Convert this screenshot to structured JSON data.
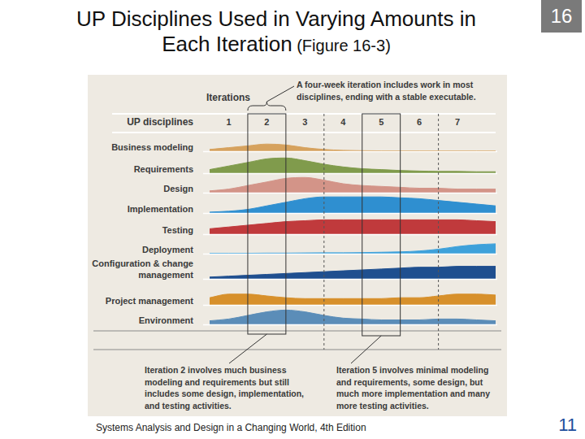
{
  "slide": {
    "title": "UP Disciplines Used in Varying Amounts in\nEach Iteration",
    "subtitle": "(Figure 16-3)",
    "chapter": "16",
    "footer": "Systems Analysis and Design in a Changing World, 4th Edition",
    "page": "11"
  },
  "figure": {
    "iterations_label": "Iterations",
    "disciplines_label": "UP disciplines",
    "iterations": [
      "1",
      "2",
      "3",
      "4",
      "5",
      "6",
      "7"
    ],
    "top_note": "A four-week iteration includes work in most\ndisciplines, ending with a stable executable.",
    "left_note": "Iteration 2 involves much business\nmodeling and requirements but still\nincludes some design, implementation,\nand testing activities.",
    "right_note": "Iteration 5 involves minimal modeling\nand requirements, some design, but\nmuch more implementation and many\nmore testing activities."
  },
  "chart_data": [
    {
      "type": "line",
      "title": "Business modeling",
      "color": "#d6a25e",
      "x": [
        0.5,
        1,
        1.5,
        2,
        2.5,
        3,
        3.5,
        4,
        4.5,
        5,
        5.5,
        6,
        6.5,
        7,
        7.5,
        8
      ],
      "values": [
        1,
        2,
        3,
        4,
        3.5,
        2,
        1,
        0.5,
        0.3,
        0.2,
        0.2,
        0.2,
        0.2,
        0.2,
        0.2,
        0.2
      ],
      "xlim": [
        0.5,
        8
      ],
      "ylim": [
        0,
        10
      ],
      "tick_labels": false,
      "grid": false
    },
    {
      "type": "line",
      "title": "Requirements",
      "color": "#809b4c",
      "x": [
        0.5,
        1,
        1.5,
        2,
        2.5,
        3,
        3.5,
        4,
        4.5,
        5,
        5.5,
        6,
        6.5,
        7,
        7.5,
        8
      ],
      "values": [
        2,
        4,
        6,
        8,
        8.5,
        7,
        5,
        3.5,
        2.5,
        2,
        1.5,
        1.2,
        1,
        1,
        0.8,
        0.8
      ],
      "xlim": [
        0.5,
        8
      ],
      "ylim": [
        0,
        10
      ],
      "tick_labels": false,
      "grid": false
    },
    {
      "type": "line",
      "title": "Design",
      "color": "#d39488",
      "x": [
        0.5,
        1,
        1.5,
        2,
        2.5,
        3,
        3.5,
        4,
        4.5,
        5,
        5.5,
        6,
        6.5,
        7,
        7.5,
        8
      ],
      "values": [
        1,
        2,
        4,
        6,
        8,
        8.5,
        7,
        5,
        4,
        3.5,
        3,
        2.5,
        2.5,
        2,
        2,
        2
      ],
      "xlim": [
        0.5,
        8
      ],
      "ylim": [
        0,
        10
      ],
      "tick_labels": false,
      "grid": false
    },
    {
      "type": "line",
      "title": "Implementation",
      "color": "#2f8fd0",
      "x": [
        0.5,
        1,
        1.5,
        2,
        2.5,
        3,
        3.5,
        4,
        4.5,
        5,
        5.5,
        6,
        6.5,
        7,
        7.5,
        8
      ],
      "values": [
        0.5,
        1,
        2,
        4,
        6,
        8,
        9,
        9,
        9,
        9,
        8.5,
        8,
        7,
        6,
        5,
        4
      ],
      "xlim": [
        0.5,
        8
      ],
      "ylim": [
        0,
        10
      ],
      "tick_labels": false,
      "grid": false
    },
    {
      "type": "line",
      "title": "Testing",
      "color": "#c03a3c",
      "x": [
        0.5,
        1,
        1.5,
        2,
        2.5,
        3,
        3.5,
        4,
        4.5,
        5,
        5.5,
        6,
        6.5,
        7,
        7.5,
        8
      ],
      "values": [
        3,
        4,
        5,
        6,
        7,
        7.5,
        8,
        8,
        8,
        8,
        8,
        8,
        8,
        8,
        7.5,
        7
      ],
      "xlim": [
        0.5,
        8
      ],
      "ylim": [
        0,
        10
      ],
      "tick_labels": false,
      "grid": false
    },
    {
      "type": "line",
      "title": "Deployment",
      "color": "#3ea1da",
      "x": [
        0.5,
        1,
        1.5,
        2,
        2.5,
        3,
        3.5,
        4,
        4.5,
        5,
        5.5,
        6,
        6.5,
        7,
        7.5,
        8
      ],
      "values": [
        0.2,
        0.2,
        0.2,
        0.3,
        0.3,
        0.4,
        0.5,
        0.5,
        0.6,
        0.8,
        1,
        1.5,
        2.5,
        4,
        5,
        5.5
      ],
      "xlim": [
        0.5,
        8
      ],
      "ylim": [
        0,
        10
      ],
      "tick_labels": false,
      "grid": false
    },
    {
      "type": "line",
      "title": "Configuration & change\nmanagement",
      "color": "#1f4f8f",
      "x": [
        0.5,
        1,
        1.5,
        2,
        2.5,
        3,
        3.5,
        4,
        4.5,
        5,
        5.5,
        6,
        6.5,
        7,
        7.5,
        8
      ],
      "values": [
        1,
        1.5,
        2,
        2.5,
        3,
        3.5,
        4,
        4.5,
        5,
        5.5,
        6,
        6.5,
        6.5,
        7,
        7,
        7
      ],
      "xlim": [
        0.5,
        8
      ],
      "ylim": [
        0,
        10
      ],
      "tick_labels": false,
      "grid": false
    },
    {
      "type": "line",
      "title": "Project management",
      "color": "#d7902b",
      "x": [
        0.5,
        1,
        1.5,
        2,
        2.5,
        3,
        3.5,
        4,
        4.5,
        5,
        5.5,
        6,
        6.5,
        7,
        7.5,
        8
      ],
      "values": [
        4,
        6,
        6,
        5,
        4,
        3.5,
        3.5,
        3.5,
        3.5,
        3.5,
        4,
        4,
        5,
        6,
        6,
        5.5
      ],
      "xlim": [
        0.5,
        8
      ],
      "ylim": [
        0,
        10
      ],
      "tick_labels": false,
      "grid": false
    },
    {
      "type": "line",
      "title": "Environment",
      "color": "#5b8db8",
      "x": [
        0.5,
        1,
        1.5,
        2,
        2.5,
        3,
        3.5,
        4,
        4.5,
        5,
        5.5,
        6,
        6.5,
        7,
        7.5,
        8
      ],
      "values": [
        2,
        3,
        5,
        7,
        8,
        7,
        5,
        3.5,
        3,
        2.5,
        2.5,
        2.5,
        3,
        3,
        2.5,
        2
      ],
      "xlim": [
        0.5,
        8
      ],
      "ylim": [
        0,
        10
      ],
      "tick_labels": false,
      "grid": false
    }
  ]
}
